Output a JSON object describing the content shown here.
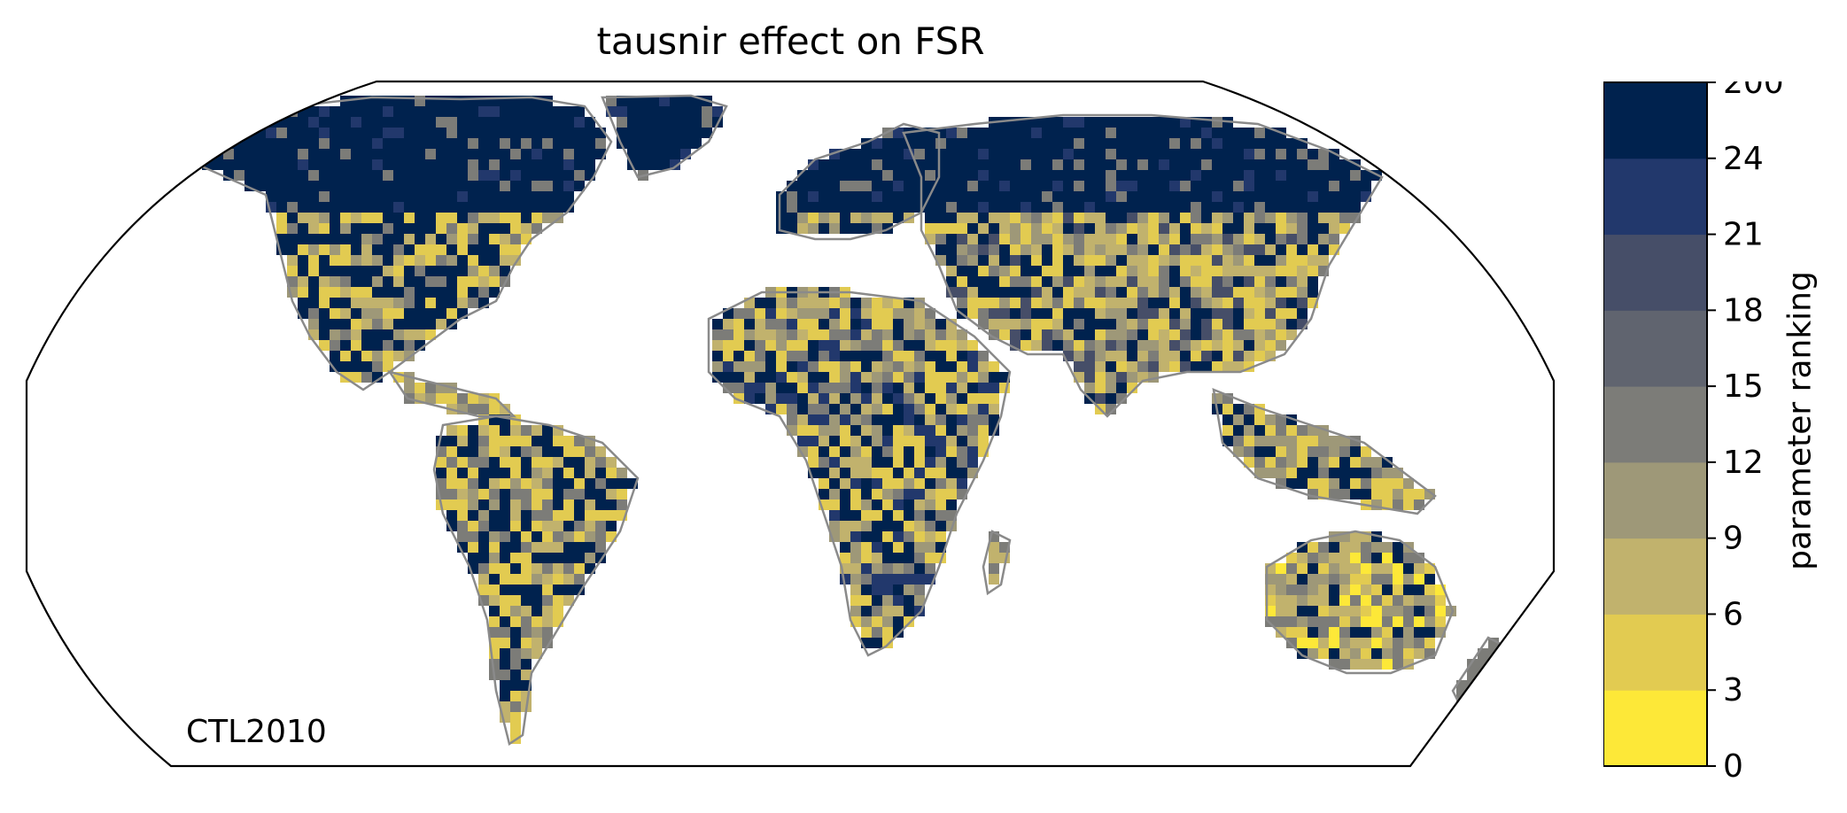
{
  "title": "tausnir effect on FSR",
  "panel_label": "CTL2010",
  "colorbar": {
    "label": "parameter ranking",
    "ticks": [
      "0",
      "3",
      "6",
      "9",
      "12",
      "15",
      "18",
      "21",
      "24",
      "200"
    ],
    "colors": [
      "#fde838",
      "#e2cb51",
      "#c1b26d",
      "#9e9878",
      "#7c7c78",
      "#60646f",
      "#464e68",
      "#22386c",
      "#00224e"
    ]
  },
  "map": {
    "projection": "robinson",
    "land_color_classes": {
      "dark": "#00224e",
      "blue": "#22386c",
      "slate": "#464e68",
      "gray": "#7c7c78",
      "khaki": "#9e9878",
      "tan": "#c1b26d",
      "gold": "#e2cb51",
      "yellow": "#fde838"
    },
    "coastline_color": "#8a8a8a"
  }
}
